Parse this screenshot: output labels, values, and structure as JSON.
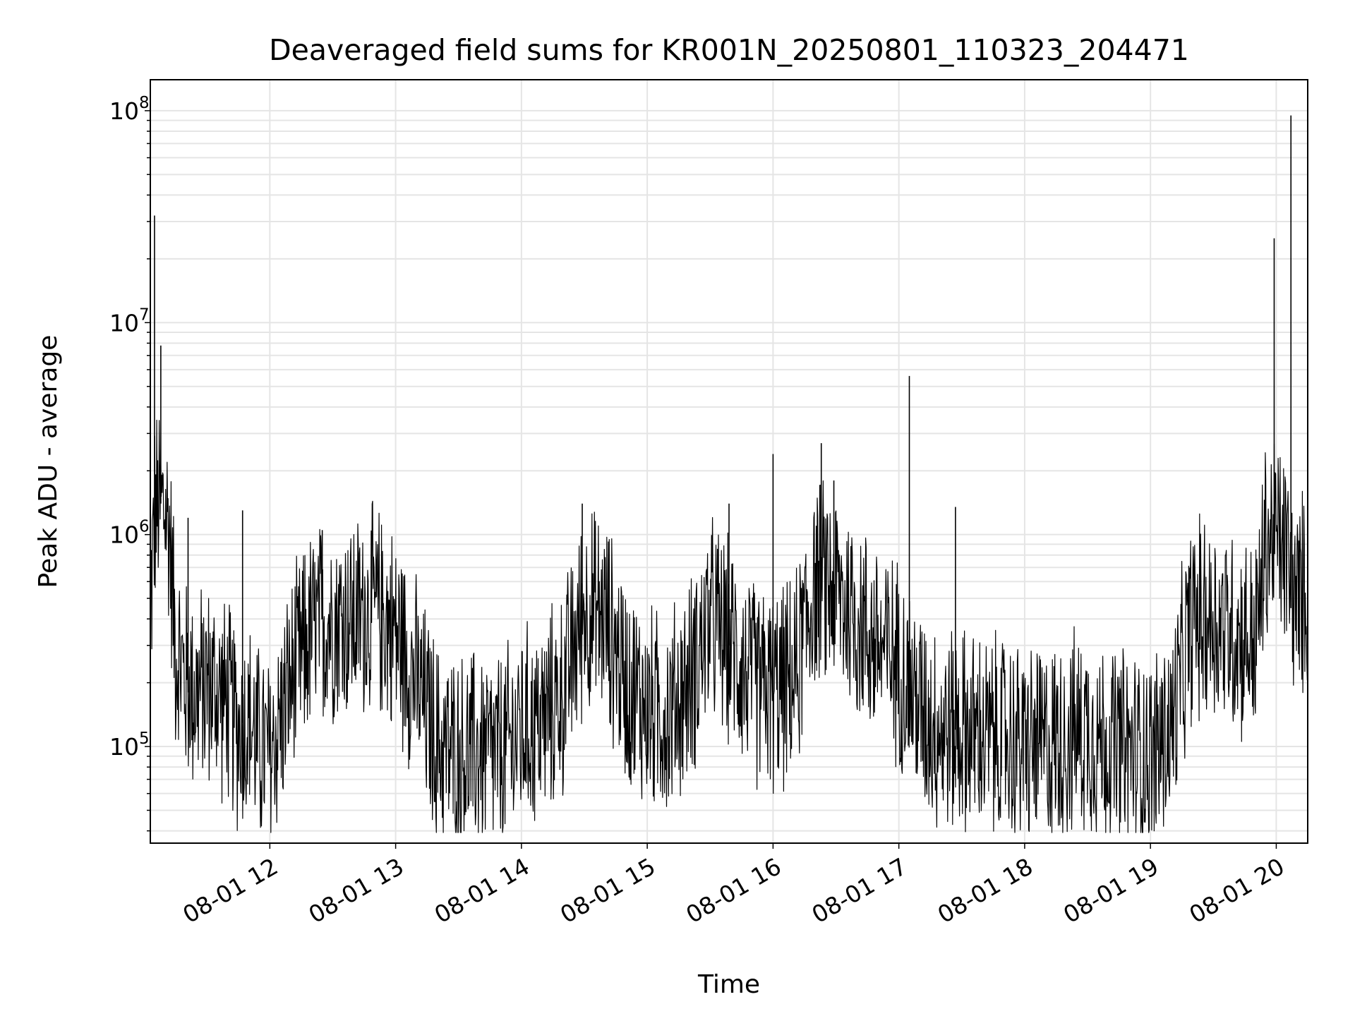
{
  "chart_data": {
    "type": "line",
    "title": "Deaveraged field sums for KR001N_20250801_110323_204471",
    "xlabel": "Time",
    "ylabel": "Peak ADU - average",
    "yscale": "log",
    "xlim": [
      "08-01 11:03",
      "08-01 20:15"
    ],
    "ylim": [
      35000,
      140000000
    ],
    "grid": true,
    "legend": "none",
    "line_color": "#000000",
    "grid_color": "#e5e5e5",
    "x_ticks": [
      {
        "value": "08-01 12:00",
        "label": "08-01 12"
      },
      {
        "value": "08-01 13:00",
        "label": "08-01 13"
      },
      {
        "value": "08-01 14:00",
        "label": "08-01 14"
      },
      {
        "value": "08-01 15:00",
        "label": "08-01 15"
      },
      {
        "value": "08-01 16:00",
        "label": "08-01 16"
      },
      {
        "value": "08-01 17:00",
        "label": "08-01 17"
      },
      {
        "value": "08-01 18:00",
        "label": "08-01 18"
      },
      {
        "value": "08-01 19:00",
        "label": "08-01 19"
      },
      {
        "value": "08-01 20:00",
        "label": "08-01 20"
      }
    ],
    "y_ticks": [
      {
        "value": 100000,
        "base": "10",
        "exp": "5"
      },
      {
        "value": 1000000,
        "base": "10",
        "exp": "6"
      },
      {
        "value": 10000000,
        "base": "10",
        "exp": "7"
      },
      {
        "value": 100000000,
        "base": "10",
        "exp": "8"
      }
    ],
    "series": [
      {
        "x": [
          "08-01 11:03",
          "08-01 11:05",
          "08-01 11:08",
          "08-01 11:10",
          "08-01 11:12",
          "08-01 11:15",
          "08-01 11:20",
          "08-01 11:25",
          "08-01 11:30",
          "08-01 11:35",
          "08-01 11:40",
          "08-01 11:45",
          "08-01 11:50",
          "08-01 11:55",
          "08-01 12:00",
          "08-01 12:10",
          "08-01 12:20",
          "08-01 12:30",
          "08-01 12:40",
          "08-01 12:50",
          "08-01 13:00",
          "08-01 13:10",
          "08-01 13:20",
          "08-01 13:30",
          "08-01 13:40",
          "08-01 13:50",
          "08-01 14:00",
          "08-01 14:10",
          "08-01 14:20",
          "08-01 14:30",
          "08-01 14:40",
          "08-01 14:50",
          "08-01 15:00",
          "08-01 15:10",
          "08-01 15:20",
          "08-01 15:30",
          "08-01 15:40",
          "08-01 15:50",
          "08-01 16:00",
          "08-01 16:10",
          "08-01 16:20",
          "08-01 16:30",
          "08-01 16:40",
          "08-01 16:50",
          "08-01 17:00",
          "08-01 17:10",
          "08-01 17:20",
          "08-01 17:30",
          "08-01 17:40",
          "08-01 17:50",
          "08-01 18:00",
          "08-01 18:10",
          "08-01 18:20",
          "08-01 18:30",
          "08-01 18:40",
          "08-01 18:50",
          "08-01 19:00",
          "08-01 19:10",
          "08-01 19:20",
          "08-01 19:30",
          "08-01 19:40",
          "08-01 19:50",
          "08-01 19:55",
          "08-01 20:00",
          "08-01 20:05",
          "08-01 20:10",
          "08-01 20:15"
        ],
        "y": [
          450000,
          1200000,
          1400000,
          1300000,
          1100000,
          300000,
          200000,
          180000,
          200000,
          180000,
          160000,
          120000,
          130000,
          100000,
          90000,
          200000,
          350000,
          400000,
          400000,
          450000,
          350000,
          200000,
          100000,
          90000,
          95000,
          90000,
          120000,
          130000,
          180000,
          450000,
          400000,
          200000,
          150000,
          140000,
          200000,
          400000,
          300000,
          200000,
          180000,
          200000,
          600000,
          550000,
          400000,
          300000,
          250000,
          150000,
          120000,
          120000,
          110000,
          110000,
          100000,
          100000,
          110000,
          120000,
          100000,
          95000,
          90000,
          120000,
          400000,
          400000,
          350000,
          300000,
          900000,
          1000000,
          800000,
          450000,
          600000
        ]
      }
    ],
    "spikes": [
      {
        "x": "08-01 11:05",
        "y": 32000000
      },
      {
        "x": "08-01 11:08",
        "y": 7800000
      },
      {
        "x": "08-01 11:21",
        "y": 1200000
      },
      {
        "x": "08-01 11:47",
        "y": 1300000
      },
      {
        "x": "08-01 12:25",
        "y": 1050000
      },
      {
        "x": "08-01 14:29",
        "y": 1400000
      },
      {
        "x": "08-01 15:39",
        "y": 1400000
      },
      {
        "x": "08-01 16:00",
        "y": 2400000
      },
      {
        "x": "08-01 16:23",
        "y": 2700000
      },
      {
        "x": "08-01 16:29",
        "y": 1800000
      },
      {
        "x": "08-01 17:05",
        "y": 5600000
      },
      {
        "x": "08-01 17:27",
        "y": 1350000
      },
      {
        "x": "08-01 19:59",
        "y": 25000000
      },
      {
        "x": "08-01 20:07",
        "y": 95000000
      }
    ]
  }
}
